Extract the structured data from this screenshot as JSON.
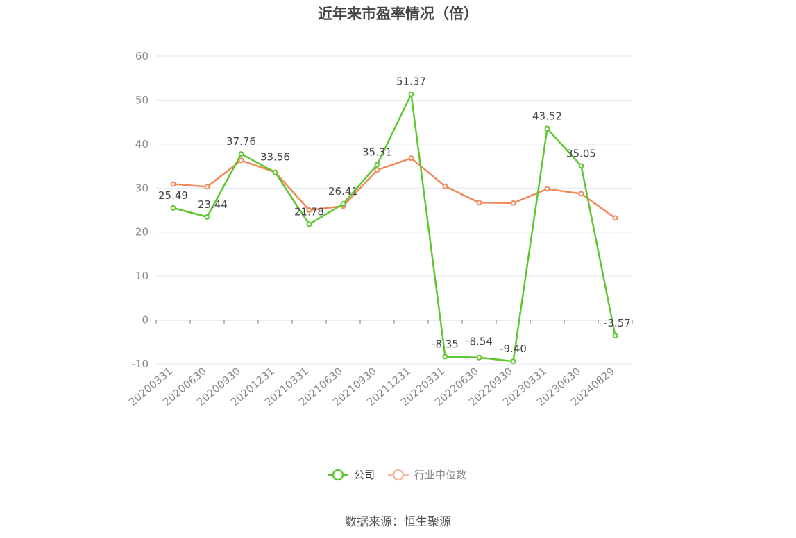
{
  "title": "近年来市盈率情况（倍）",
  "source": "数据来源：恒生聚源",
  "colors": {
    "company": "#5cc72e",
    "industry": "#f2885a",
    "grid": "#e3e6f2",
    "axis": "#6e7079"
  },
  "chart_data": {
    "type": "line",
    "title": "近年来市盈率情况（倍）",
    "categories": [
      "20200331",
      "20200630",
      "20200930",
      "20201231",
      "20210331",
      "20210630",
      "20210930",
      "20211231",
      "20220331",
      "20220630",
      "20220930",
      "20230331",
      "20230630",
      "20240829"
    ],
    "ylim": [
      -10,
      60
    ],
    "yticks": [
      -10,
      0,
      10,
      20,
      30,
      40,
      50,
      60
    ],
    "grid": true,
    "legend_position": "bottom-center",
    "series": [
      {
        "name": "公司",
        "values": [
          25.49,
          23.44,
          37.76,
          33.56,
          21.78,
          26.41,
          35.31,
          51.37,
          -8.35,
          -8.54,
          -9.4,
          43.52,
          35.05,
          -3.57
        ],
        "labels": [
          "25.49",
          "23.44",
          "37.76",
          "33.56",
          "21.78",
          "26.41",
          "35.31",
          "51.37",
          "-8.35",
          "-8.54",
          "-9.40",
          "43.52",
          "35.05",
          "-3.57"
        ]
      },
      {
        "name": "行业中位数",
        "values": [
          30.9,
          30.3,
          36.3,
          33.6,
          25.0,
          25.9,
          34.1,
          36.8,
          30.4,
          26.7,
          26.6,
          29.8,
          28.7,
          23.2
        ]
      }
    ]
  }
}
